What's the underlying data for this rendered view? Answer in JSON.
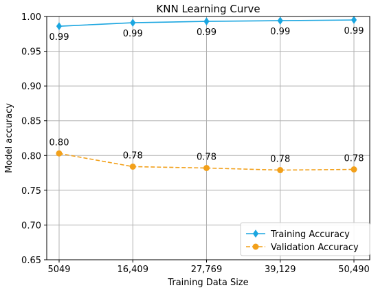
{
  "chart_data": {
    "type": "line",
    "title": "KNN Learning Curve",
    "xlabel": "Training Data Size",
    "ylabel": "Model accuracy",
    "x": [
      5049,
      16409,
      27769,
      39129,
      50490
    ],
    "x_tick_labels": [
      "5049",
      "16,409",
      "27,769",
      "39,129",
      "50,490"
    ],
    "ylim": [
      0.65,
      1.0
    ],
    "y_ticks": [
      0.65,
      0.7,
      0.75,
      0.8,
      0.85,
      0.9,
      0.95,
      1.0
    ],
    "y_tick_labels": [
      "0.65",
      "0.70",
      "0.75",
      "0.80",
      "0.85",
      "0.90",
      "0.95",
      "1.00"
    ],
    "grid": true,
    "legend_position": "bottom-right",
    "series": [
      {
        "name": "Training Accuracy",
        "values": [
          0.986,
          0.991,
          0.993,
          0.994,
          0.995
        ],
        "data_labels": [
          "0.99",
          "0.99",
          "0.99",
          "0.99",
          "0.99"
        ],
        "color": "#1ba6e0",
        "marker": "diamond",
        "line_style": "solid"
      },
      {
        "name": "Validation Accuracy",
        "values": [
          0.803,
          0.784,
          0.782,
          0.779,
          0.78
        ],
        "data_labels": [
          "0.80",
          "0.78",
          "0.78",
          "0.78",
          "0.78"
        ],
        "color": "#f2a01a",
        "marker": "circle",
        "line_style": "dashed"
      }
    ]
  }
}
